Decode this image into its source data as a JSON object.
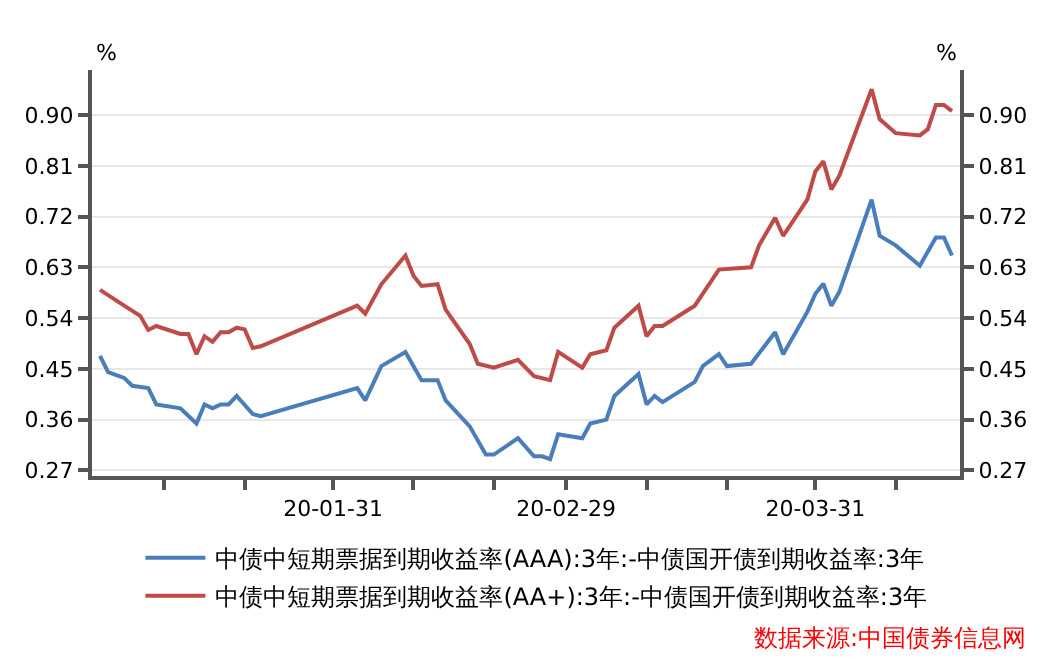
{
  "chart_data": {
    "type": "line",
    "ylabel": "%",
    "y2label": "%",
    "xlim": [
      "--01-01",
      "--04-18"
    ],
    "xticks": [
      {
        "value": "--01-10",
        "label": null
      },
      {
        "value": "--01-20",
        "label": null
      },
      {
        "value": "--01-31",
        "label": "20-01-31"
      },
      {
        "value": "--02-10",
        "label": null
      },
      {
        "value": "--02-20",
        "label": null
      },
      {
        "value": "--02-29",
        "label": "20-02-29"
      },
      {
        "value": "--03-10",
        "label": null
      },
      {
        "value": "--03-20",
        "label": null
      },
      {
        "value": "--03-31",
        "label": "20-03-31"
      },
      {
        "value": "--04-10",
        "label": null
      }
    ],
    "ylim": [
      0.26,
      0.98
    ],
    "yticks": [
      {
        "value": 0.27,
        "label": "0.27"
      },
      {
        "value": 0.36,
        "label": "0.36"
      },
      {
        "value": 0.45,
        "label": "0.45"
      },
      {
        "value": 0.54,
        "label": "0.54"
      },
      {
        "value": 0.63,
        "label": "0.63"
      },
      {
        "value": 0.72,
        "label": "0.72"
      },
      {
        "value": 0.81,
        "label": "0.81"
      },
      {
        "value": 0.9,
        "label": "0.90"
      }
    ],
    "y2lim": [
      0.26,
      0.98
    ],
    "y2ticks": [
      {
        "value": 0.27,
        "label": "0.27"
      },
      {
        "value": 0.36,
        "label": "0.36"
      },
      {
        "value": 0.45,
        "label": "0.45"
      },
      {
        "value": 0.54,
        "label": "0.54"
      },
      {
        "value": 0.63,
        "label": "0.63"
      },
      {
        "value": 0.72,
        "label": "0.72"
      },
      {
        "value": 0.81,
        "label": "0.81"
      },
      {
        "value": 0.9,
        "label": "0.90"
      }
    ],
    "grid": "y",
    "legend": "bottom",
    "marker": "none",
    "line_style": "solid",
    "annotations": [
      "数据来源:中国债券信息网"
    ],
    "series": [
      {
        "name": "中债中短期票据到期收益率(AAA):3年:-中债国开债到期收益率:3年",
        "color": "#4a7ebb",
        "x": [
          "--01-02",
          "--01-03",
          "--01-05",
          "--01-06",
          "--01-08",
          "--01-09",
          "--01-12",
          "--01-14",
          "--01-15",
          "--01-16",
          "--01-17",
          "--01-18",
          "--01-19",
          "--01-21",
          "--01-22",
          "--02-03",
          "--02-04",
          "--02-06",
          "--02-09",
          "--02-11",
          "--02-13",
          "--02-14",
          "--02-17",
          "--02-19",
          "--02-20",
          "--02-23",
          "--02-25",
          "--02-26",
          "--02-27",
          "--02-28",
          "--03-02",
          "--03-03",
          "--03-05",
          "--03-06",
          "--03-09",
          "--03-10",
          "--03-11",
          "--03-12",
          "--03-16",
          "--03-17",
          "--03-19",
          "--03-20",
          "--03-23",
          "--03-26",
          "--03-27",
          "--03-30",
          "--03-31",
          "--04-01",
          "--04-02",
          "--04-03",
          "--04-07",
          "--04-08",
          "--04-10",
          "--04-13",
          "--04-15",
          "--04-16",
          "--04-17"
        ],
        "values": [
          0.473,
          0.444,
          0.434,
          0.42,
          0.416,
          0.387,
          0.38,
          0.353,
          0.387,
          0.38,
          0.387,
          0.387,
          0.402,
          0.37,
          0.366,
          0.416,
          0.394,
          0.455,
          0.48,
          0.43,
          0.43,
          0.394,
          0.348,
          0.298,
          0.298,
          0.327,
          0.295,
          0.295,
          0.29,
          0.334,
          0.327,
          0.353,
          0.36,
          0.402,
          0.441,
          0.387,
          0.402,
          0.391,
          0.427,
          0.455,
          0.476,
          0.455,
          0.459,
          0.515,
          0.476,
          0.551,
          0.583,
          0.601,
          0.562,
          0.587,
          0.75,
          0.686,
          0.669,
          0.633,
          0.683,
          0.683,
          0.651
        ]
      },
      {
        "name": "中债中短期票据到期收益率(AA+):3年:-中债国开债到期收益率:3年",
        "color": "#be4b48",
        "x": [
          "--01-02",
          "--01-05",
          "--01-07",
          "--01-08",
          "--01-09",
          "--01-12",
          "--01-13",
          "--01-14",
          "--01-15",
          "--01-16",
          "--01-17",
          "--01-18",
          "--01-19",
          "--01-20",
          "--01-21",
          "--01-22",
          "--02-03",
          "--02-04",
          "--02-06",
          "--02-09",
          "--02-10",
          "--02-11",
          "--02-13",
          "--02-14",
          "--02-17",
          "--02-18",
          "--02-20",
          "--02-23",
          "--02-25",
          "--02-27",
          "--02-28",
          "--03-02",
          "--03-03",
          "--03-05",
          "--03-06",
          "--03-09",
          "--03-10",
          "--03-11",
          "--03-12",
          "--03-16",
          "--03-19",
          "--03-23",
          "--03-24",
          "--03-26",
          "--03-27",
          "--03-30",
          "--03-31",
          "--04-01",
          "--04-02",
          "--04-03",
          "--04-07",
          "--04-08",
          "--04-10",
          "--04-13",
          "--04-14",
          "--04-15",
          "--04-16",
          "--04-17"
        ],
        "values": [
          0.59,
          0.562,
          0.544,
          0.519,
          0.526,
          0.512,
          0.512,
          0.476,
          0.508,
          0.498,
          0.515,
          0.515,
          0.523,
          0.52,
          0.487,
          0.49,
          0.562,
          0.548,
          0.6,
          0.651,
          0.615,
          0.597,
          0.6,
          0.555,
          0.494,
          0.459,
          0.452,
          0.466,
          0.437,
          0.43,
          0.48,
          0.452,
          0.476,
          0.483,
          0.523,
          0.562,
          0.508,
          0.526,
          0.526,
          0.562,
          0.626,
          0.63,
          0.669,
          0.718,
          0.686,
          0.75,
          0.8,
          0.818,
          0.768,
          0.793,
          0.946,
          0.893,
          0.868,
          0.864,
          0.875,
          0.918,
          0.918,
          0.907
        ]
      }
    ]
  }
}
